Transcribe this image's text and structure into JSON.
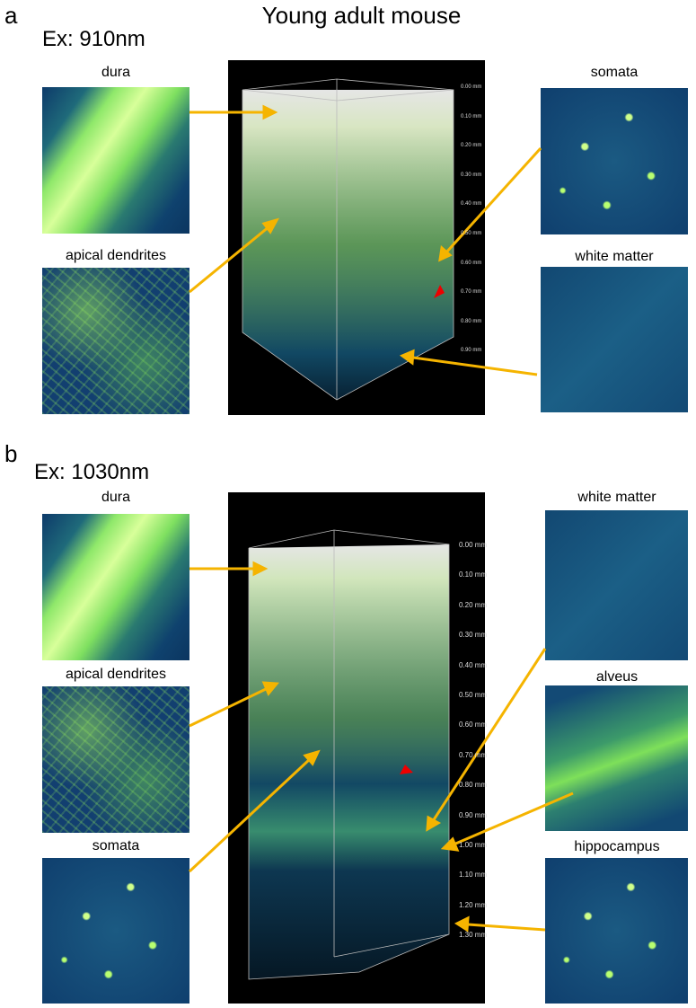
{
  "title": "Young adult mouse",
  "panel_a": {
    "letter": "a",
    "excitation": "Ex: 910nm",
    "insets": [
      {
        "label": "dura"
      },
      {
        "label": "apical  dendrites"
      },
      {
        "label": "somata"
      },
      {
        "label": "white matter"
      }
    ],
    "depth_labels": [
      "0.00 mm",
      "0.10 mm",
      "0.20 mm",
      "0.30 mm",
      "0.40 mm",
      "0.50 mm",
      "0.60 mm",
      "0.70 mm",
      "0.80 mm",
      "0.90 mm"
    ]
  },
  "panel_b": {
    "letter": "b",
    "excitation": "Ex: 1030nm",
    "insets": [
      {
        "label": "dura"
      },
      {
        "label": "apical  dendrites"
      },
      {
        "label": "somata"
      },
      {
        "label": "white  matter"
      },
      {
        "label": "alveus"
      },
      {
        "label": "hippocampus"
      }
    ],
    "depth_labels": [
      "0.00 mm",
      "0.10 mm",
      "0.20 mm",
      "0.30 mm",
      "0.40 mm",
      "0.50 mm",
      "0.60 mm",
      "0.70 mm",
      "0.80 mm",
      "0.90 mm",
      "1.00 mm",
      "1.10 mm",
      "1.20 mm",
      "1.30 mm"
    ]
  }
}
